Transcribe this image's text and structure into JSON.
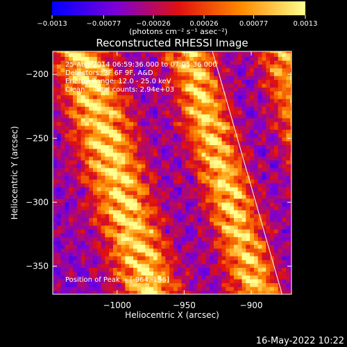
{
  "chart_data": {
    "type": "heatmap",
    "title": "Reconstructed RHESSI Image",
    "xlabel": "Heliocentric X (arcsec)",
    "ylabel": "Heliocentric Y (arcsec)",
    "xlim": [
      -1048,
      -870
    ],
    "ylim": [
      -372,
      -182
    ],
    "x_ticks": [
      -1000,
      -950,
      -900
    ],
    "x_tick_labels": [
      "−1000",
      "−950",
      "−900"
    ],
    "y_ticks": [
      -200,
      -250,
      -300,
      -350
    ],
    "y_tick_labels": [
      "−200",
      "−250",
      "−300",
      "−350"
    ],
    "grid": false,
    "colorbar": {
      "range": [
        -0.0013,
        0.0013
      ],
      "ticks": [
        -0.0013,
        -0.00077,
        -0.00026,
        0.00026,
        0.00077,
        0.0013
      ],
      "tick_labels": [
        "−0.0013",
        "−0.00077",
        "−0.00026",
        "0.00026",
        "0.00077",
        "0.0013"
      ],
      "unit_label": "(photons cm⁻² s⁻¹ asec⁻²)",
      "colors": [
        "#0000ff",
        "#7a00d9",
        "#e01010",
        "#ff8c00",
        "#ffff90"
      ]
    },
    "annotations": [
      "25-Aug-2014 06:59:36.000 to 07:05:36.000",
      "Detectors: 3F 6F 9F, A&D",
      "Energy Range: 12.0 - 25.0 keV",
      "Clean    Total counts: 2.94e+03"
    ],
    "peak_label": "Position of Peak = [-964,-196]",
    "peak": [
      -964,
      -196
    ],
    "limb_line": [
      [
        -930,
        -178
      ],
      [
        -877,
        -372
      ]
    ],
    "bright_bands": [
      {
        "at_y": -180,
        "x_center": -1030,
        "width": 22,
        "strength": 1.0
      },
      {
        "at_y": -180,
        "x_center": -950,
        "width": 18,
        "strength": 0.95
      },
      {
        "at_y": -180,
        "x_center": -880,
        "width": 18,
        "strength": 0.75
      }
    ]
  },
  "footer": {
    "timestamp": "16-May-2022 10:22"
  }
}
